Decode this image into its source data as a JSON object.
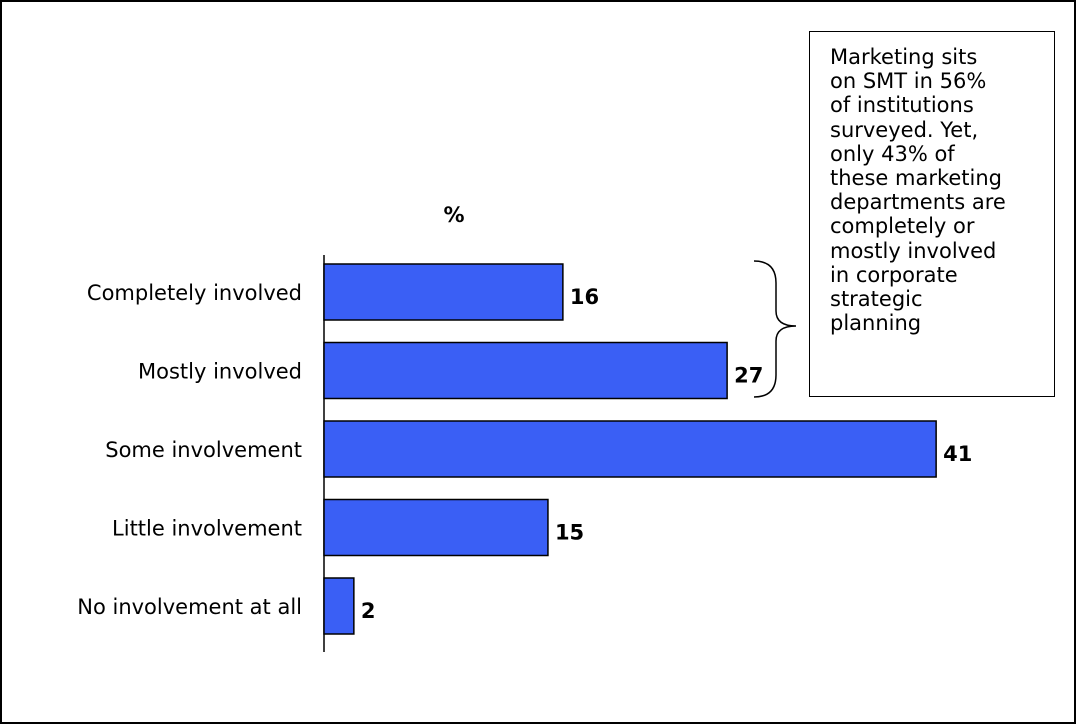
{
  "chart_data": {
    "type": "bar",
    "orientation": "horizontal",
    "unit": "%",
    "categories": [
      "Completely involved",
      "Mostly involved",
      "Some involvement",
      "Little involvement",
      "No involvement at all"
    ],
    "values": [
      16,
      27,
      41,
      15,
      2
    ],
    "value_labels": [
      "16",
      "27",
      "41",
      "15",
      "2"
    ],
    "bar_color": "#3A5FF5",
    "grid": false,
    "annotation": {
      "text": "Marketing sits\non SMT in 56%\nof institutions\nsurveyed. Yet,\nonly 43% of\nthese marketing\ndepartments are\ncompletely or\nmostly involved\nin corporate\nstrategic\nplanning",
      "refers_to": [
        "Completely involved",
        "Mostly involved"
      ]
    }
  }
}
